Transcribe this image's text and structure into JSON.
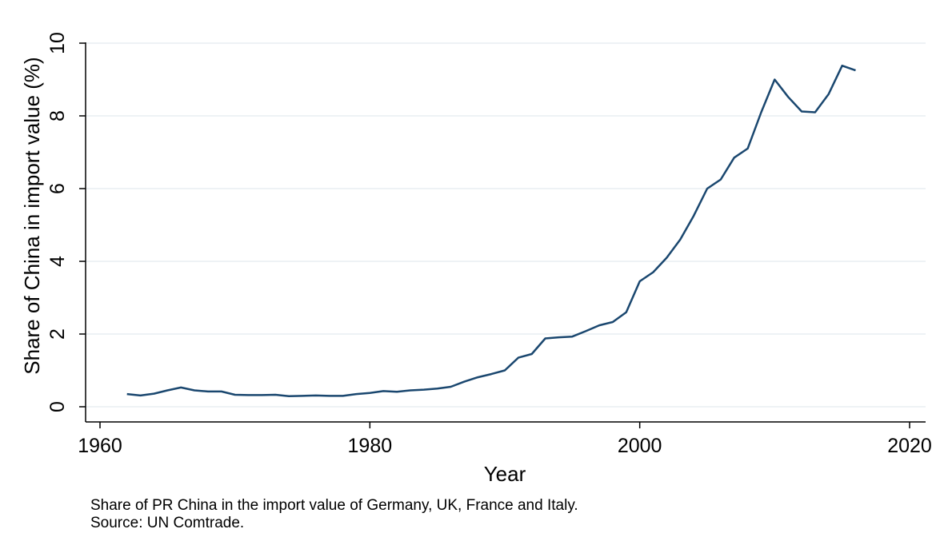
{
  "chart_data": {
    "type": "line",
    "xlabel": "Year",
    "ylabel": "Share of China in import value (%)",
    "xlim": [
      1960,
      2020
    ],
    "ylim": [
      0,
      10
    ],
    "xticks": [
      "1960",
      "1980",
      "2000",
      "2020"
    ],
    "yticks": [
      "0",
      "2",
      "4",
      "6",
      "8",
      "10"
    ],
    "grid": true,
    "line_color": "#1a476f",
    "series": [
      {
        "x": [
          1962,
          1963,
          1964,
          1965,
          1966,
          1967,
          1968,
          1969,
          1970,
          1971,
          1972,
          1973,
          1974,
          1975,
          1976,
          1977,
          1978,
          1979,
          1980,
          1981,
          1982,
          1983,
          1984,
          1985,
          1986,
          1987,
          1988,
          1989,
          1990,
          1991,
          1992,
          1993,
          1994,
          1995,
          1996,
          1997,
          1998,
          1999,
          2000,
          2001,
          2002,
          2003,
          2004,
          2005,
          2006,
          2007,
          2008,
          2009,
          2010,
          2011,
          2012,
          2013,
          2014,
          2015,
          2016
        ],
        "y": [
          0.35,
          0.31,
          0.36,
          0.45,
          0.53,
          0.45,
          0.42,
          0.42,
          0.33,
          0.32,
          0.32,
          0.33,
          0.29,
          0.3,
          0.31,
          0.3,
          0.3,
          0.35,
          0.38,
          0.43,
          0.41,
          0.45,
          0.47,
          0.5,
          0.55,
          0.69,
          0.81,
          0.9,
          1.0,
          1.35,
          1.45,
          1.88,
          1.91,
          1.93,
          2.08,
          2.24,
          2.33,
          2.6,
          3.45,
          3.7,
          4.1,
          4.6,
          5.25,
          6.0,
          6.25,
          6.85,
          7.1,
          8.1,
          9.0,
          8.52,
          8.12,
          8.1,
          8.6,
          9.38,
          9.25
        ]
      }
    ]
  },
  "notes": {
    "line1": "Share of PR China in the import value of Germany, UK, France and Italy.",
    "line2": "Source: UN Comtrade."
  }
}
